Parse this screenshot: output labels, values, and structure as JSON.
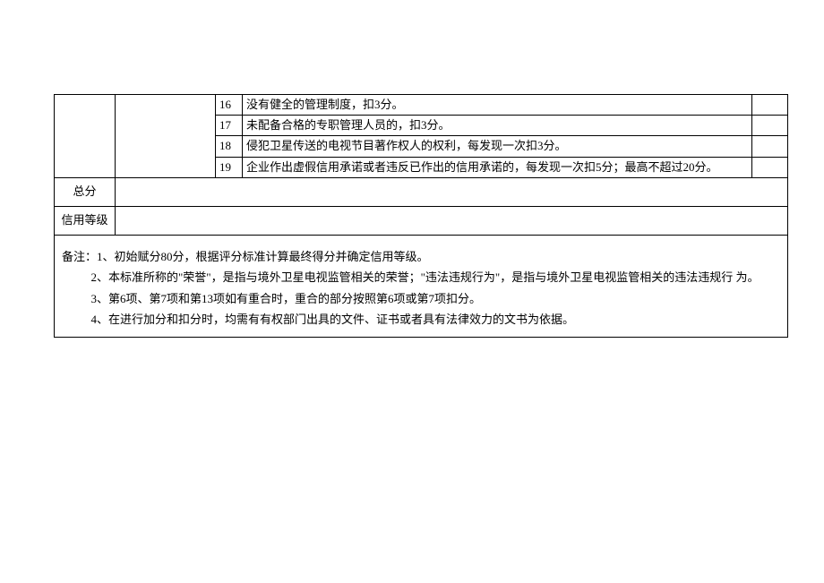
{
  "tableRows": [
    {
      "num": "16",
      "text": "没有健全的管理制度，扣3分。"
    },
    {
      "num": "17",
      "text": "未配备合格的专职管理人员的，扣3分。"
    },
    {
      "num": "18",
      "text": "侵犯卫星传送的电视节目著作权人的权利，每发现一次扣3分。"
    },
    {
      "num": "19",
      "text": "企业作出虚假信用承诺或者违反已作出的信用承诺的，每发现一次扣5分；最高不超过20分。"
    }
  ],
  "labelTotal": "总分",
  "labelCredit": "信用等级",
  "notes": {
    "prefix": "备注：",
    "n1": "1、初始赋分80分，根据评分标准计算最终得分并确定信用等级。",
    "n2": "2、本标准所称的\"荣誉\"，是指与境外卫星电视监管相关的荣誉；\"违法违规行为\"，是指与境外卫星电视监管相关的违法违规行 为。",
    "n3": "3、第6项、第7项和第13项如有重合时，重合的部分按照第6项或第7项扣分。",
    "n4": "4、在进行加分和扣分时，均需有有权部门出具的文件、证书或者具有法律效力的文书为依据。"
  }
}
